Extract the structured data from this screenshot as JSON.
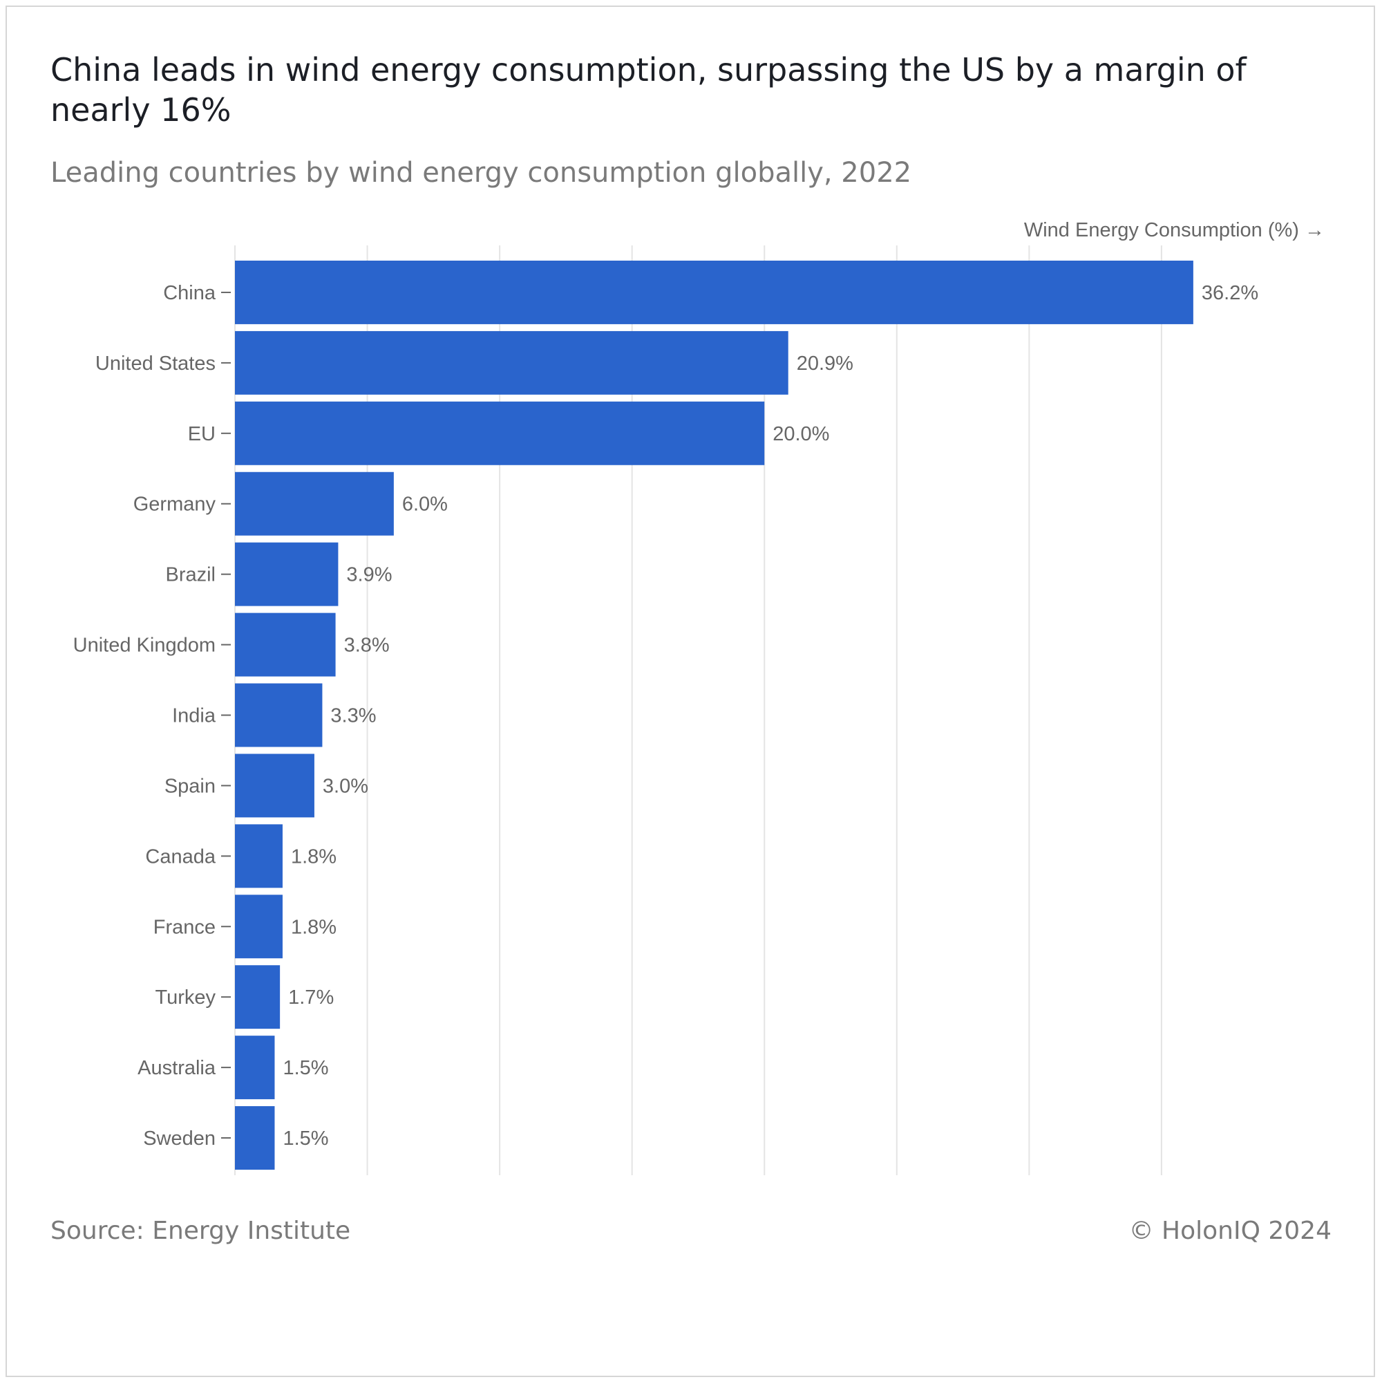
{
  "header": {
    "title": "China leads in wind energy consumption, surpassing the US by a margin of nearly 16%",
    "subtitle": "Leading countries by wind energy consumption globally, 2022"
  },
  "footer": {
    "source": "Source: Energy Institute",
    "copyright": "© HolonIQ 2024"
  },
  "colors": {
    "bar": "#2a64cc",
    "grid": "#e4e4e4",
    "text": "#666666"
  },
  "chart_data": {
    "type": "bar",
    "orientation": "horizontal",
    "title": "China leads in wind energy consumption, surpassing the US by a margin of nearly 16%",
    "subtitle": "Leading countries by wind energy consumption globally, 2022",
    "xlabel": "Wind Energy Consumption (%) →",
    "ylabel": "",
    "categories": [
      "China",
      "United States",
      "EU",
      "Germany",
      "Brazil",
      "United Kingdom",
      "India",
      "Spain",
      "Canada",
      "France",
      "Turkey",
      "Australia",
      "Sweden"
    ],
    "values": [
      36.2,
      20.9,
      20.0,
      6.0,
      3.9,
      3.8,
      3.3,
      3.0,
      1.8,
      1.8,
      1.7,
      1.5,
      1.5
    ],
    "value_labels": [
      "36.2%",
      "20.9%",
      "20.0%",
      "6.0%",
      "3.9%",
      "3.8%",
      "3.3%",
      "3.0%",
      "1.8%",
      "1.8%",
      "1.7%",
      "1.5%",
      "1.5%"
    ],
    "xlim": [
      0,
      38.5
    ],
    "grid": true,
    "legend": "none"
  }
}
